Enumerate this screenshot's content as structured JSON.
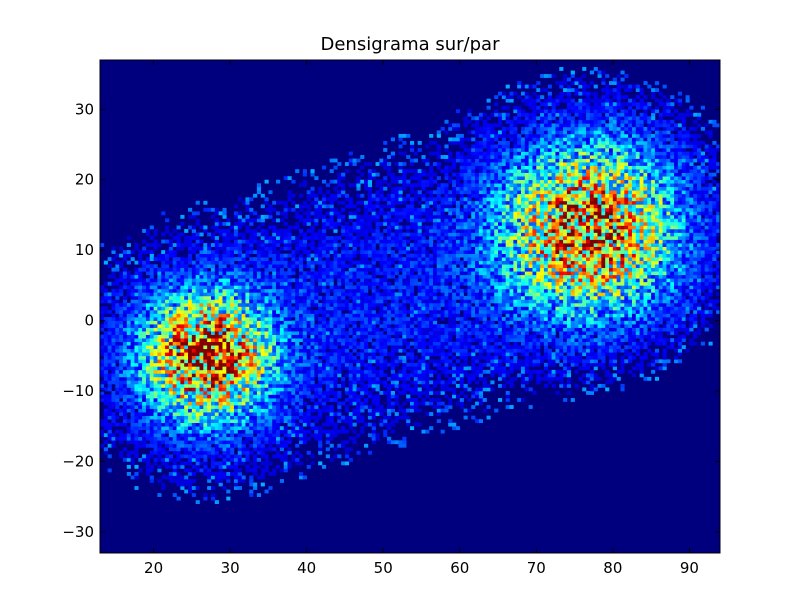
{
  "chart_data": {
    "type": "heatmap",
    "title": "Densigrama sur/par",
    "xlabel": "",
    "ylabel": "",
    "xlim": [
      13,
      94
    ],
    "ylim": [
      -33,
      37
    ],
    "x_ticks": [
      20,
      30,
      40,
      50,
      60,
      70,
      80,
      90
    ],
    "y_ticks": [
      -30,
      -20,
      -10,
      0,
      10,
      20,
      30
    ],
    "x_tick_labels": [
      "20",
      "30",
      "40",
      "50",
      "60",
      "70",
      "80",
      "90"
    ],
    "y_tick_labels": [
      "−30",
      "−20",
      "−10",
      "0",
      "10",
      "20",
      "30"
    ],
    "grid": false,
    "colormap": "jet",
    "background_color": "#00007f",
    "clusters": [
      {
        "center_x": 27,
        "center_y": -5,
        "spread_x": 5.5,
        "spread_y": 6,
        "peak_density": 1.0
      },
      {
        "center_x": 77,
        "center_y": 13,
        "spread_x": 7.5,
        "spread_y": 8,
        "peak_density": 0.9
      }
    ],
    "bridge_density": 0.18,
    "bin_size": 0.5
  }
}
